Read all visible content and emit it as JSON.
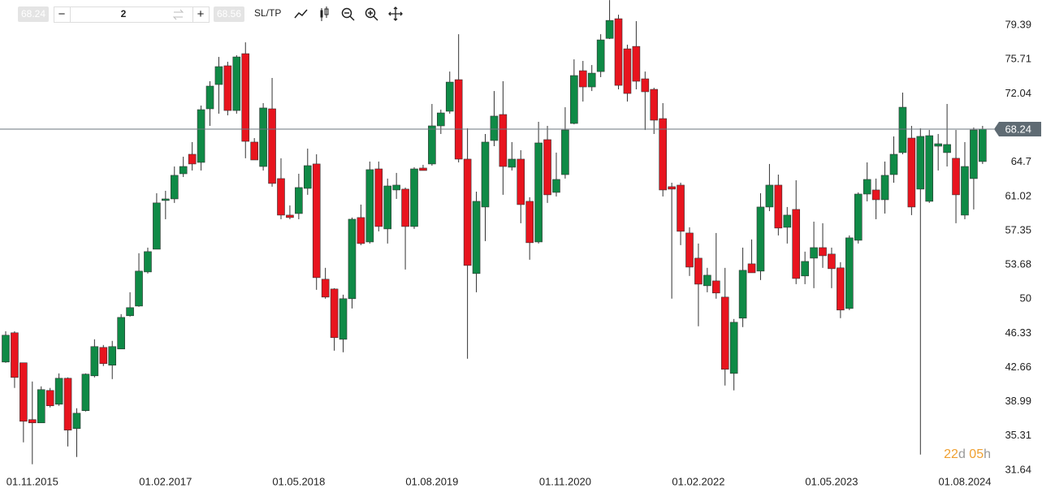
{
  "toolbar": {
    "bid": "68.24",
    "minus": "−",
    "quantity": "2",
    "plus": "+",
    "ask": "68.56",
    "sltp": "SL/TP"
  },
  "chart_data": {
    "type": "candlestick",
    "up_color": "#0f8a46",
    "down_color": "#e8141e",
    "categories": [
      null,
      null,
      null,
      "01.11.2015",
      null,
      null,
      null,
      null,
      null,
      null,
      null,
      null,
      null,
      null,
      null,
      null,
      null,
      null,
      "01.02.2017",
      null,
      null,
      null,
      null,
      null,
      null,
      null,
      null,
      null,
      null,
      null,
      null,
      null,
      null,
      "01.05.2018",
      null,
      null,
      null,
      null,
      null,
      null,
      null,
      null,
      null,
      null,
      null,
      null,
      null,
      null,
      "01.08.2019",
      null,
      null,
      null,
      null,
      null,
      null,
      null,
      null,
      null,
      null,
      null,
      null,
      null,
      null,
      "01.11.2020",
      null,
      null,
      null,
      null,
      null,
      null,
      null,
      null,
      null,
      null,
      null,
      null,
      null,
      null,
      "01.02.2022",
      null,
      null,
      null,
      null,
      null,
      null,
      null,
      null,
      null,
      null,
      null,
      null,
      null,
      null,
      "01.05.2023",
      null,
      null,
      null,
      null,
      null,
      null,
      null,
      null,
      null,
      null,
      null,
      null,
      null,
      null,
      "01.08.2024",
      null,
      null
    ],
    "open": [
      43.24,
      46.38,
      43.16,
      37.06,
      36.71,
      40.19,
      38.71,
      41.5,
      36.1,
      38.02,
      41.76,
      44.81,
      42.9,
      44.64,
      48.21,
      49.25,
      52.91,
      55.35,
      60.58,
      60.75,
      63.45,
      65.54,
      64.67,
      70.42,
      73.03,
      75.04,
      70.24,
      76.34,
      66.85,
      64.23,
      70.42,
      62.93,
      59.01,
      59.18,
      61.88,
      64.5,
      52.13,
      51.08,
      45.68,
      50.04,
      58.75,
      56.13,
      63.97,
      57.53,
      61.71,
      61.8,
      57.79,
      64.06,
      64.5,
      68.59,
      70.16,
      73.55,
      65.02,
      52.74,
      59.88,
      67.02,
      69.81,
      64.15,
      65.02,
      60.49,
      56.13,
      67.11,
      61.45,
      63.36,
      68.85,
      74.51,
      72.77,
      74.42,
      77.98,
      80.09,
      76.86,
      77.12,
      73.64,
      72.51,
      69.37,
      62.06,
      62.23,
      57.09,
      54.39,
      51.43,
      51.95,
      50.21,
      42.02,
      47.95,
      53.78,
      53.0,
      59.88,
      62.23,
      57.7,
      59.62,
      52.48,
      54.39,
      55.52,
      54.83,
      53.35,
      48.99,
      56.31,
      61.27,
      61.71,
      60.66,
      63.36,
      65.72,
      67.28,
      61.8,
      60.49,
      66.41,
      65.72,
      65.11,
      59.01,
      62.93,
      64.76
    ],
    "high": [
      46.55,
      46.55,
      43.16,
      41.15,
      40.63,
      40.46,
      42.02,
      41.59,
      38.28,
      42.02,
      45.68,
      45.07,
      45.51,
      48.38,
      50.73,
      54.92,
      55.52,
      61.36,
      61.62,
      64.23,
      65.28,
      66.85,
      70.77,
      73.38,
      75.99,
      75.47,
      76.17,
      77.56,
      67.28,
      71.03,
      73.73,
      65.11,
      60.05,
      63.45,
      66.15,
      65.54,
      53.35,
      51.17,
      50.47,
      58.75,
      60.14,
      64.76,
      64.76,
      62.93,
      63.54,
      61.97,
      64.15,
      64.41,
      70.94,
      70.33,
      74.42,
      78.43,
      68.33,
      61.53,
      67.72,
      72.33,
      73.38,
      66.85,
      65.98,
      60.93,
      69.02,
      68.59,
      65.72,
      70.59,
      75.73,
      75.56,
      75.12,
      78.43,
      82.09,
      80.52,
      77.3,
      79.83,
      74.42,
      72.68,
      71.03,
      62.49,
      62.49,
      57.7,
      55.96,
      53.35,
      57.09,
      53.35,
      47.86,
      55.52,
      56.4,
      61.36,
      64.5,
      63.36,
      59.88,
      62.75,
      55.09,
      58.31,
      58.14,
      55.52,
      53.96,
      56.83,
      61.45,
      64.67,
      62.93,
      64.76,
      67.46,
      72.16,
      68.59,
      68.33,
      68.15,
      67.72,
      70.94,
      68.15,
      66.85,
      68.41,
      68.59
    ],
    "low": [
      43.16,
      40.46,
      34.62,
      32.27,
      36.71,
      38.37,
      38.54,
      34.18,
      33.05,
      37.93,
      41.59,
      42.81,
      41.41,
      44.64,
      48.12,
      49.17,
      52.74,
      55.35,
      58.57,
      60.32,
      63.1,
      63.8,
      63.8,
      68.59,
      69.9,
      69.72,
      69.9,
      65.11,
      64.93,
      63.8,
      62.06,
      58.57,
      58.57,
      58.57,
      61.19,
      50.99,
      50.04,
      44.46,
      44.29,
      48.99,
      55.79,
      55.96,
      57.27,
      55.96,
      60.75,
      53.17,
      57.53,
      63.8,
      64.32,
      67.72,
      69.9,
      64.67,
      43.59,
      50.73,
      56.22,
      66.41,
      61.19,
      63.8,
      58.14,
      54.22,
      55.96,
      60.32,
      61.01,
      62.93,
      68.76,
      71.2,
      72.33,
      73.82,
      77.91,
      72.51,
      71.2,
      72.51,
      68.15,
      67.72,
      61.01,
      50.04,
      55.79,
      52.48,
      47.08,
      50.73,
      50.04,
      40.72,
      40.2,
      46.99,
      52.82,
      52.04,
      59.44,
      56.83,
      55.96,
      51.6,
      51.6,
      51.17,
      53.35,
      51.17,
      47.95,
      48.82,
      55.96,
      60.49,
      58.57,
      59.18,
      62.49,
      65.54,
      59.01,
      33.31,
      60.32,
      63.8,
      64.23,
      58.14,
      58.57,
      59.62,
      64.5
    ],
    "close": [
      46.12,
      41.59,
      36.88,
      36.71,
      40.28,
      38.54,
      41.5,
      35.93,
      37.75,
      41.94,
      44.9,
      43.07,
      44.9,
      48.03,
      49.08,
      53.0,
      55.09,
      60.32,
      60.75,
      63.28,
      64.23,
      64.5,
      70.33,
      72.86,
      74.95,
      70.24,
      75.99,
      66.93,
      64.93,
      70.51,
      62.41,
      59.01,
      58.75,
      61.97,
      64.32,
      52.3,
      50.21,
      45.86,
      50.04,
      58.57,
      55.96,
      63.89,
      57.79,
      62.14,
      62.23,
      57.79,
      63.97,
      63.8,
      68.59,
      69.98,
      73.29,
      65.02,
      53.61,
      60.49,
      66.85,
      69.64,
      64.23,
      65.02,
      60.14,
      56.05,
      66.76,
      61.19,
      62.84,
      68.15,
      73.99,
      72.77,
      74.25,
      77.82,
      79.91,
      72.94,
      72.07,
      73.38,
      72.25,
      69.2,
      61.71,
      61.8,
      57.27,
      53.43,
      51.6,
      52.56,
      50.65,
      42.46,
      47.51,
      53.09,
      52.82,
      59.88,
      62.23,
      57.62,
      59.01,
      52.21,
      54.04,
      55.52,
      54.65,
      53.26,
      48.82,
      56.57,
      61.27,
      62.84,
      60.66,
      63.28,
      65.54,
      70.59,
      59.88,
      67.46,
      67.54,
      66.67,
      66.59,
      61.19,
      64.23,
      68.15,
      68.24
    ],
    "ylim": [
      29.8,
      82.1
    ],
    "yticks": [
      79.39,
      75.71,
      72.04,
      64.7,
      61.02,
      57.35,
      53.68,
      50.0,
      46.33,
      42.66,
      38.99,
      35.31,
      31.64
    ],
    "last_price": 68.24,
    "countdown": [
      "22",
      "d",
      " 05",
      "h"
    ]
  }
}
